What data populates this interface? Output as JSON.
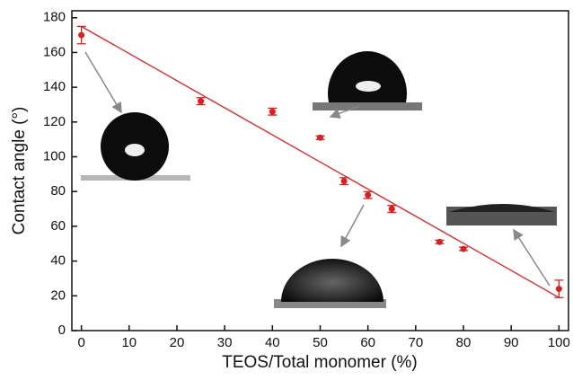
{
  "chart_data": {
    "type": "scatter",
    "x_label": "TEOS/Total monomer (%)",
    "y_label": "Contact angle (°)",
    "x": [
      0,
      25,
      40,
      50,
      55,
      60,
      65,
      75,
      80,
      100
    ],
    "values": [
      170,
      132,
      126,
      111,
      86,
      78,
      70,
      51,
      47,
      24
    ],
    "errors": [
      5,
      2,
      2,
      1,
      2,
      2,
      2,
      1,
      1,
      5
    ],
    "color": "#d82020",
    "fit": {
      "x": [
        0,
        100
      ],
      "values": [
        175,
        19
      ],
      "color": "#d03a3a"
    },
    "xlim": [
      -2,
      102
    ],
    "xticks": [
      0,
      10,
      20,
      30,
      40,
      50,
      60,
      70,
      80,
      90,
      100
    ],
    "ylim": [
      0,
      184
    ],
    "yticks": [
      0,
      20,
      40,
      60,
      80,
      100,
      120,
      140,
      160,
      180
    ]
  }
}
